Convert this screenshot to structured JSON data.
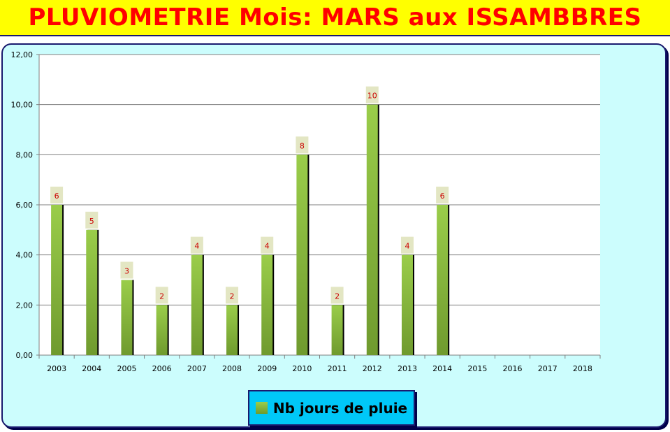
{
  "title": "PLUVIOMETRIE Mois: MARS aux ISSAMBBRES",
  "colors": {
    "title_bg": "#ffff00",
    "title_text": "#ff0000",
    "chart_bg": "#ccfdfd",
    "plot_bg": "#ffffff",
    "bar_top": "#9acd4a",
    "bar_bottom": "#6f9a2e",
    "data_label": "#cc0000",
    "data_label_bg": "#e3e6c3",
    "legend_bg": "#00c8f8"
  },
  "chart_data": {
    "type": "bar",
    "title": "PLUVIOMETRIE Mois: MARS aux ISSAMBBRES",
    "xlabel": "",
    "ylabel": "",
    "ylim": [
      0,
      12
    ],
    "y_ticks": [
      "0,00",
      "2,00",
      "4,00",
      "6,00",
      "8,00",
      "10,00",
      "12,00"
    ],
    "categories": [
      "2003",
      "2004",
      "2005",
      "2006",
      "2007",
      "2008",
      "2009",
      "2010",
      "2011",
      "2012",
      "2013",
      "2014",
      "2015",
      "2016",
      "2017",
      "2018"
    ],
    "series": [
      {
        "name": "Nb jours de pluie",
        "values": [
          6,
          5,
          3,
          2,
          4,
          2,
          4,
          8,
          2,
          10,
          4,
          6,
          null,
          null,
          null,
          null
        ]
      }
    ],
    "grid": true,
    "legend_position": "bottom"
  }
}
